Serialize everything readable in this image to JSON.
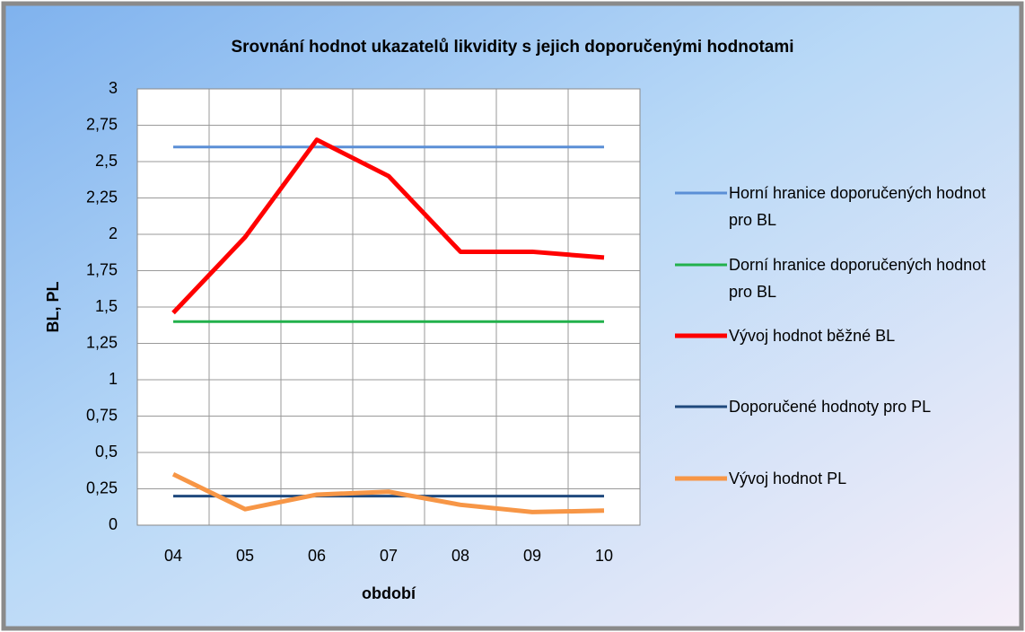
{
  "chart_data": {
    "type": "line",
    "title": "Srovnání hodnot ukazatelů likvidity s jejich doporučenými hodnotami",
    "x_label": "období",
    "y_label": "BL, PL",
    "categories": [
      "04",
      "05",
      "06",
      "07",
      "08",
      "09",
      "10"
    ],
    "series": [
      {
        "name": "Horní hranice doporučených hodnot pro BL",
        "color": "#5b8fd6",
        "values": [
          2.6,
          2.6,
          2.6,
          2.6,
          2.6,
          2.6,
          2.6
        ]
      },
      {
        "name": "Dorní hranice doporučených hodnot pro BL",
        "color": "#22b14c",
        "values": [
          1.4,
          1.4,
          1.4,
          1.4,
          1.4,
          1.4,
          1.4
        ]
      },
      {
        "name": "Vývoj hodnot běžné BL",
        "color": "#ff0000",
        "values": [
          1.46,
          1.98,
          2.65,
          2.4,
          1.88,
          1.88,
          1.84
        ]
      },
      {
        "name": "Doporučené hodnoty pro PL",
        "color": "#1f497d",
        "values": [
          0.2,
          0.2,
          0.2,
          0.2,
          0.2,
          0.2,
          0.2
        ]
      },
      {
        "name": "Vývoj hodnot PL",
        "color": "#f79646",
        "values": [
          0.35,
          0.11,
          0.21,
          0.23,
          0.14,
          0.09,
          0.1
        ]
      }
    ],
    "ylim": [
      0,
      3
    ],
    "yticks": [
      0,
      {
        "value": 0.25,
        "label": "0,25"
      },
      {
        "value": 0.5,
        "label": "0,5"
      },
      {
        "value": 0.75,
        "label": "0,75"
      },
      1,
      {
        "value": 1.25,
        "label": "1,25"
      },
      {
        "value": 1.5,
        "label": "1,5"
      },
      {
        "value": 1.75,
        "label": "1,75"
      },
      2,
      {
        "value": 2.25,
        "label": "2,25"
      },
      {
        "value": 2.5,
        "label": "2,5"
      },
      {
        "value": 2.75,
        "label": "2,75"
      },
      3
    ],
    "grid": true,
    "legend": "right"
  }
}
